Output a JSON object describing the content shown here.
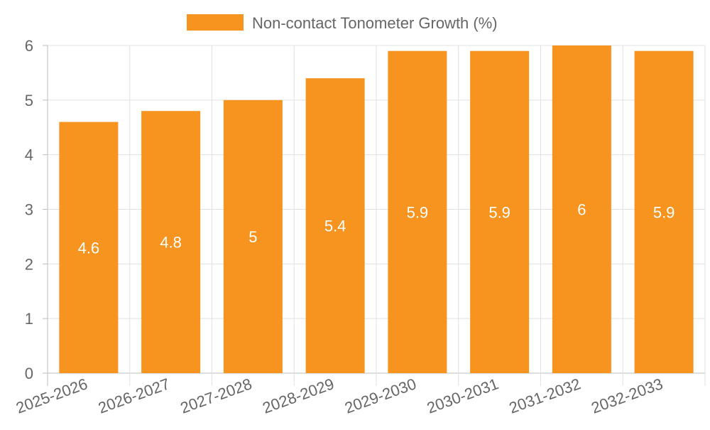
{
  "chart_data": {
    "type": "bar",
    "title": "",
    "legend": {
      "label": "Non-contact Tonometer Growth (%)",
      "placement": "top-center"
    },
    "categories": [
      "2025-2026",
      "2026-2027",
      "2027-2028",
      "2028-2029",
      "2029-2030",
      "2030-2031",
      "2031-2032",
      "2032-2033"
    ],
    "series": [
      {
        "name": "Non-contact Tonometer Growth (%)",
        "values": [
          4.6,
          4.8,
          5,
          5.4,
          5.9,
          5.9,
          6,
          5.9
        ]
      }
    ],
    "data_labels": [
      "4.6",
      "4.8",
      "5",
      "5.4",
      "5.9",
      "5.9",
      "6",
      "5.9"
    ],
    "xlabel": "",
    "ylabel": "",
    "ylim": [
      0,
      6
    ],
    "yticks": [
      "0",
      "1",
      "2",
      "3",
      "4",
      "5",
      "6"
    ],
    "grid": true,
    "colors": {
      "bar": "#F7941F",
      "grid": "#E0E0E0",
      "axis": "#BDBDBD",
      "text": "#666666",
      "label": "#FFFFFF"
    }
  }
}
